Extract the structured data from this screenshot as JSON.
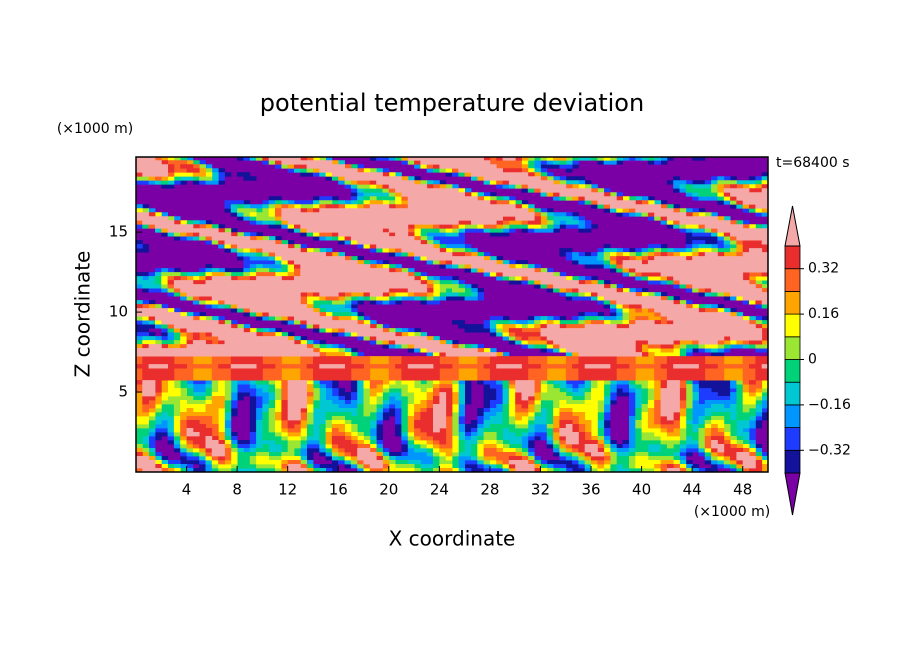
{
  "chart_data": {
    "type": "contour",
    "title": "potential temperature deviation",
    "x_label": "X coordinate",
    "y_label": "Z coordinate",
    "x_unit": "(×1000 m)",
    "y_unit": "(×1000 m)",
    "time_label": "t=68400 s",
    "xlim": [
      0,
      50
    ],
    "ylim": [
      0,
      19.7
    ],
    "xticks": [
      4,
      8,
      12,
      16,
      20,
      24,
      28,
      32,
      36,
      40,
      44,
      48
    ],
    "yticks": [
      5,
      10,
      15
    ],
    "levels": [
      -0.4,
      -0.32,
      -0.24,
      -0.16,
      -0.08,
      0,
      0.08,
      0.16,
      0.24,
      0.32,
      0.4
    ],
    "colors": [
      "#7a00a6",
      "#12129a",
      "#1e3cff",
      "#0096ff",
      "#00c8d2",
      "#00d27a",
      "#9be632",
      "#ffff00",
      "#ffa500",
      "#ff6423",
      "#ea2d2d",
      "#f5a8a8"
    ],
    "colorbar_ticks": [
      {
        "value": -0.32,
        "label": "−0.32"
      },
      {
        "value": -0.16,
        "label": "−0.16"
      },
      0,
      0.16,
      0.32
    ]
  }
}
